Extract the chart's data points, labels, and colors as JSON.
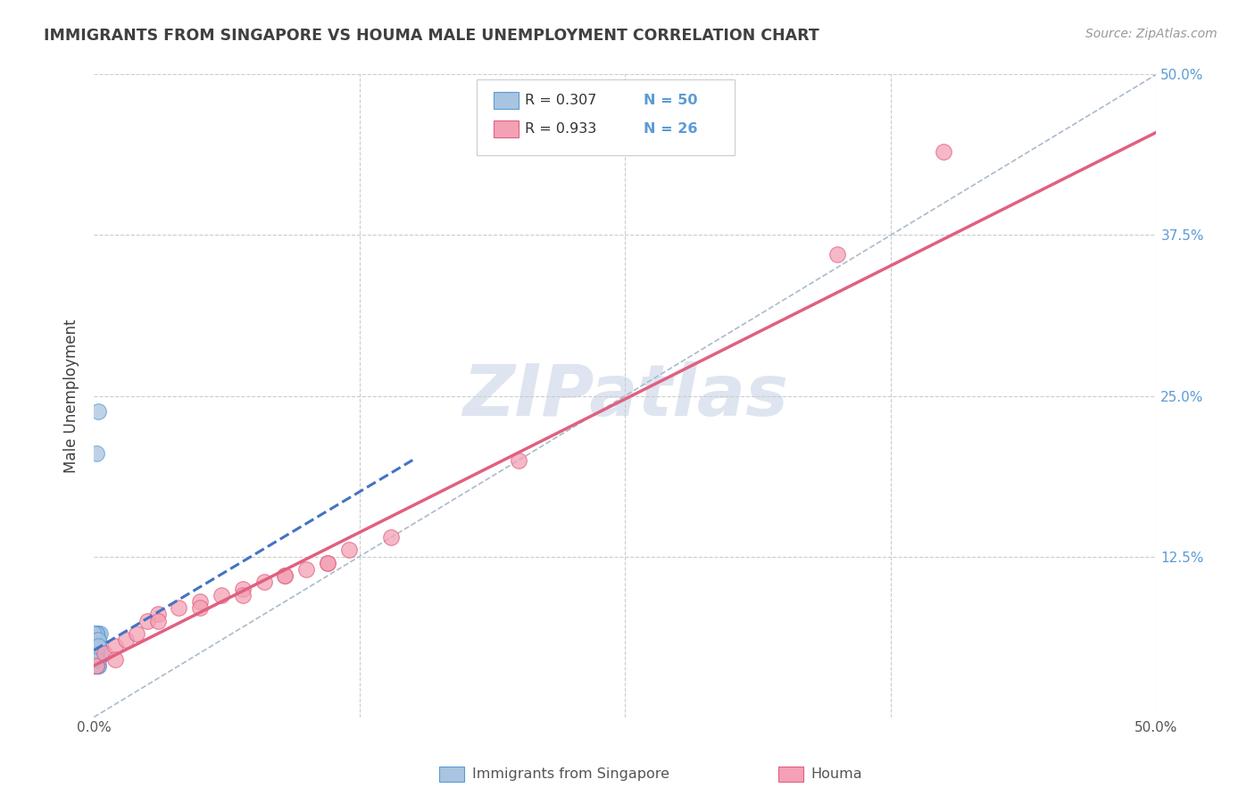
{
  "title": "IMMIGRANTS FROM SINGAPORE VS HOUMA MALE UNEMPLOYMENT CORRELATION CHART",
  "source": "Source: ZipAtlas.com",
  "ylabel": "Male Unemployment",
  "xlim": [
    0,
    0.5
  ],
  "ylim": [
    0,
    0.5
  ],
  "blue_color": "#a8c4e0",
  "pink_color": "#f4a0b5",
  "blue_edge_color": "#5b9bd5",
  "pink_edge_color": "#e06080",
  "blue_line_color": "#4472c4",
  "pink_line_color": "#e06080",
  "diag_color": "#aabbcc",
  "grid_color": "#cccccc",
  "title_color": "#404040",
  "right_tick_color": "#5b9bd5",
  "watermark_color": "#cdd8e8",
  "legend_r1": "R = 0.307",
  "legend_n1": "N = 50",
  "legend_r2": "R = 0.933",
  "legend_n2": "N = 26",
  "sg_x": [
    0.001,
    0.0,
    0.0,
    0.001,
    0.001,
    0.002,
    0.0,
    0.001,
    0.001,
    0.0,
    0.001,
    0.0,
    0.001,
    0.002,
    0.001,
    0.001,
    0.002,
    0.001,
    0.0,
    0.001,
    0.002,
    0.001,
    0.002,
    0.001,
    0.003,
    0.001,
    0.002,
    0.001,
    0.002,
    0.001,
    0.002,
    0.001,
    0.003,
    0.002,
    0.001,
    0.001,
    0.002,
    0.001,
    0.0,
    0.001,
    0.002,
    0.001,
    0.001,
    0.0,
    0.001,
    0.002,
    0.001,
    0.002,
    0.001,
    0.002
  ],
  "sg_y": [
    0.05,
    0.055,
    0.04,
    0.06,
    0.045,
    0.06,
    0.065,
    0.05,
    0.04,
    0.055,
    0.06,
    0.05,
    0.045,
    0.06,
    0.055,
    0.05,
    0.065,
    0.045,
    0.05,
    0.06,
    0.055,
    0.045,
    0.06,
    0.05,
    0.065,
    0.04,
    0.055,
    0.06,
    0.045,
    0.055,
    0.04,
    0.065,
    0.05,
    0.06,
    0.045,
    0.055,
    0.04,
    0.065,
    0.05,
    0.06,
    0.045,
    0.055,
    0.04,
    0.065,
    0.05,
    0.238,
    0.205,
    0.06,
    0.045,
    0.055
  ],
  "hm_x": [
    0.001,
    0.005,
    0.01,
    0.015,
    0.02,
    0.025,
    0.03,
    0.04,
    0.05,
    0.06,
    0.07,
    0.08,
    0.09,
    0.1,
    0.11,
    0.12,
    0.14,
    0.05,
    0.07,
    0.09,
    0.11,
    0.35,
    0.4,
    0.01,
    0.03,
    0.2
  ],
  "hm_y": [
    0.04,
    0.05,
    0.055,
    0.06,
    0.065,
    0.075,
    0.08,
    0.085,
    0.09,
    0.095,
    0.1,
    0.105,
    0.11,
    0.115,
    0.12,
    0.13,
    0.14,
    0.085,
    0.095,
    0.11,
    0.12,
    0.36,
    0.44,
    0.045,
    0.075,
    0.2
  ],
  "sg_trend": [
    0.0,
    0.15
  ],
  "sg_trend_y": [
    0.052,
    0.2
  ],
  "hm_trend_x0": 0.0,
  "hm_trend_y0": 0.04,
  "hm_trend_x1": 0.5,
  "hm_trend_y1": 0.455
}
